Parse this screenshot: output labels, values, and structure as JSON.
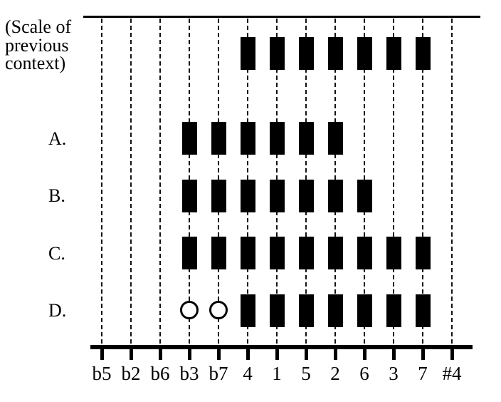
{
  "figure": {
    "context_label_lines": [
      "(Scale of",
      "previous",
      "context)"
    ],
    "colors": {
      "ink": "#000000",
      "background": "#ffffff"
    }
  },
  "chart_data": {
    "type": "heatmap",
    "title": "",
    "xlabel": "",
    "ylabel": "",
    "categories": [
      "b5",
      "b2",
      "b6",
      "b3",
      "b7",
      "4",
      "1",
      "5",
      "2",
      "6",
      "3",
      "7",
      "#4"
    ],
    "mark_legend": {
      "rect": "scale degree present (filled rectangle)",
      "circle": "open circle mark",
      "": "absent"
    },
    "rows": [
      {
        "label": "(Scale of previous context)",
        "marks": [
          "",
          "",
          "",
          "",
          "",
          "rect",
          "rect",
          "rect",
          "rect",
          "rect",
          "rect",
          "rect",
          ""
        ]
      },
      {
        "label": "A.",
        "marks": [
          "",
          "",
          "",
          "rect",
          "rect",
          "rect",
          "rect",
          "rect",
          "rect",
          "",
          "",
          "",
          ""
        ]
      },
      {
        "label": "B.",
        "marks": [
          "",
          "",
          "",
          "rect",
          "rect",
          "rect",
          "rect",
          "rect",
          "rect",
          "rect",
          "",
          "",
          ""
        ]
      },
      {
        "label": "C.",
        "marks": [
          "",
          "",
          "",
          "rect",
          "rect",
          "rect",
          "rect",
          "rect",
          "rect",
          "rect",
          "rect",
          "rect",
          ""
        ]
      },
      {
        "label": "D.",
        "marks": [
          "",
          "",
          "",
          "circle",
          "circle",
          "rect",
          "rect",
          "rect",
          "rect",
          "rect",
          "rect",
          "rect",
          ""
        ]
      }
    ],
    "layout_hints": {
      "axis_position": "bottom",
      "grid": "dashed-vertical",
      "legend": "none"
    }
  }
}
